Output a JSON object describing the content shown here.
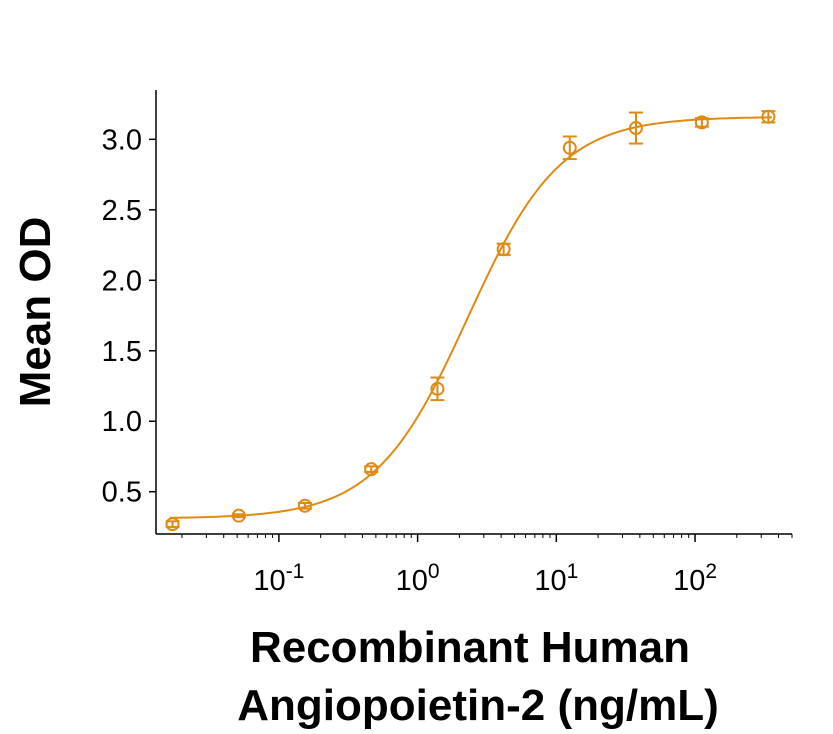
{
  "chart_data": {
    "type": "scatter",
    "title": "",
    "xlabel_lines": [
      "Recombinant Human",
      "Angiopoietin-2 (ng/mL)"
    ],
    "ylabel": "Mean OD",
    "x_scale": "log",
    "xlim": [
      0.013,
      500
    ],
    "ylim": [
      0.2,
      3.35
    ],
    "x_ticks": [
      {
        "value": 0.1,
        "base": "10",
        "exp": "-1"
      },
      {
        "value": 1,
        "base": "10",
        "exp": "0"
      },
      {
        "value": 10,
        "base": "10",
        "exp": "1"
      },
      {
        "value": 100,
        "base": "10",
        "exp": "2"
      }
    ],
    "y_ticks": [
      {
        "value": 0.5,
        "label": "0.5"
      },
      {
        "value": 1.0,
        "label": "1.0"
      },
      {
        "value": 1.5,
        "label": "1.5"
      },
      {
        "value": 2.0,
        "label": "2.0"
      },
      {
        "value": 2.5,
        "label": "2.5"
      },
      {
        "value": 3.0,
        "label": "3.0"
      }
    ],
    "color": "#E08A12",
    "grid": false,
    "legend": "none",
    "points": [
      {
        "x": 0.0171,
        "y": 0.27,
        "err": 0.02
      },
      {
        "x": 0.0514,
        "y": 0.33,
        "err": 0.01
      },
      {
        "x": 0.154,
        "y": 0.4,
        "err": 0.02
      },
      {
        "x": 0.463,
        "y": 0.66,
        "err": 0.02
      },
      {
        "x": 1.39,
        "y": 1.23,
        "err": 0.08
      },
      {
        "x": 4.17,
        "y": 2.22,
        "err": 0.04
      },
      {
        "x": 12.5,
        "y": 2.94,
        "err": 0.08
      },
      {
        "x": 37.5,
        "y": 3.08,
        "err": 0.11
      },
      {
        "x": 112,
        "y": 3.12,
        "err": 0.03
      },
      {
        "x": 338,
        "y": 3.16,
        "err": 0.04
      }
    ],
    "fit_curve": {
      "model": "4PL",
      "bottom": 0.31,
      "top": 3.16,
      "ec50": 2.3,
      "hill": 1.3
    }
  }
}
